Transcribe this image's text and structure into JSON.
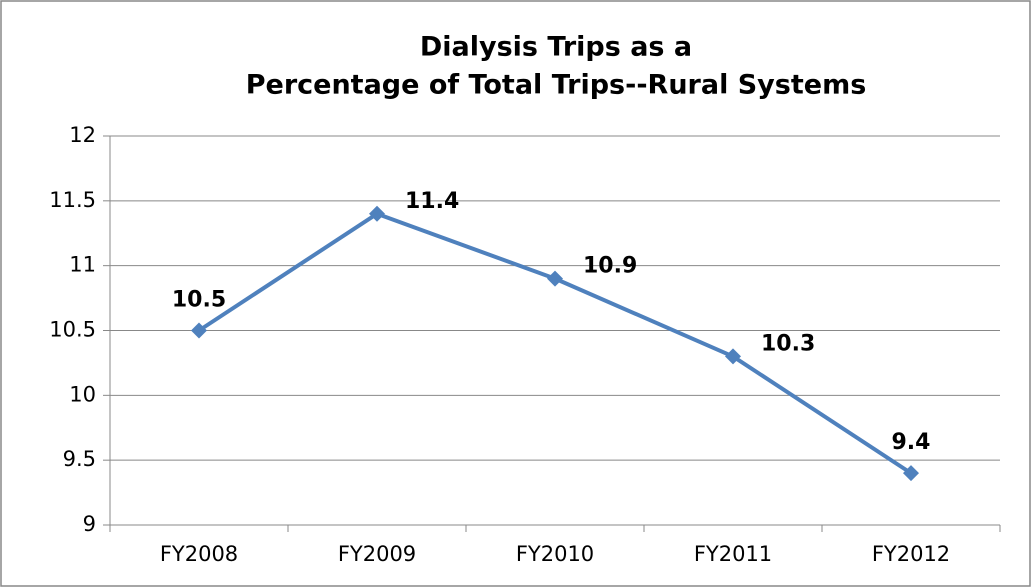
{
  "chart_data": {
    "type": "line",
    "title": [
      "Dialysis Trips as a",
      "Percentage of Total Trips--Rural Systems"
    ],
    "categories": [
      "FY2008",
      "FY2009",
      "FY2010",
      "FY2011",
      "FY2012"
    ],
    "series": [
      {
        "name": "Dialysis Trips",
        "color": "#4f81bd",
        "values": [
          10.5,
          11.4,
          10.9,
          10.3,
          9.4
        ]
      }
    ],
    "ylim": [
      9,
      12
    ],
    "yticks": [
      9,
      9.5,
      10,
      10.5,
      11,
      11.5,
      12
    ],
    "grid": true,
    "legend": false
  }
}
